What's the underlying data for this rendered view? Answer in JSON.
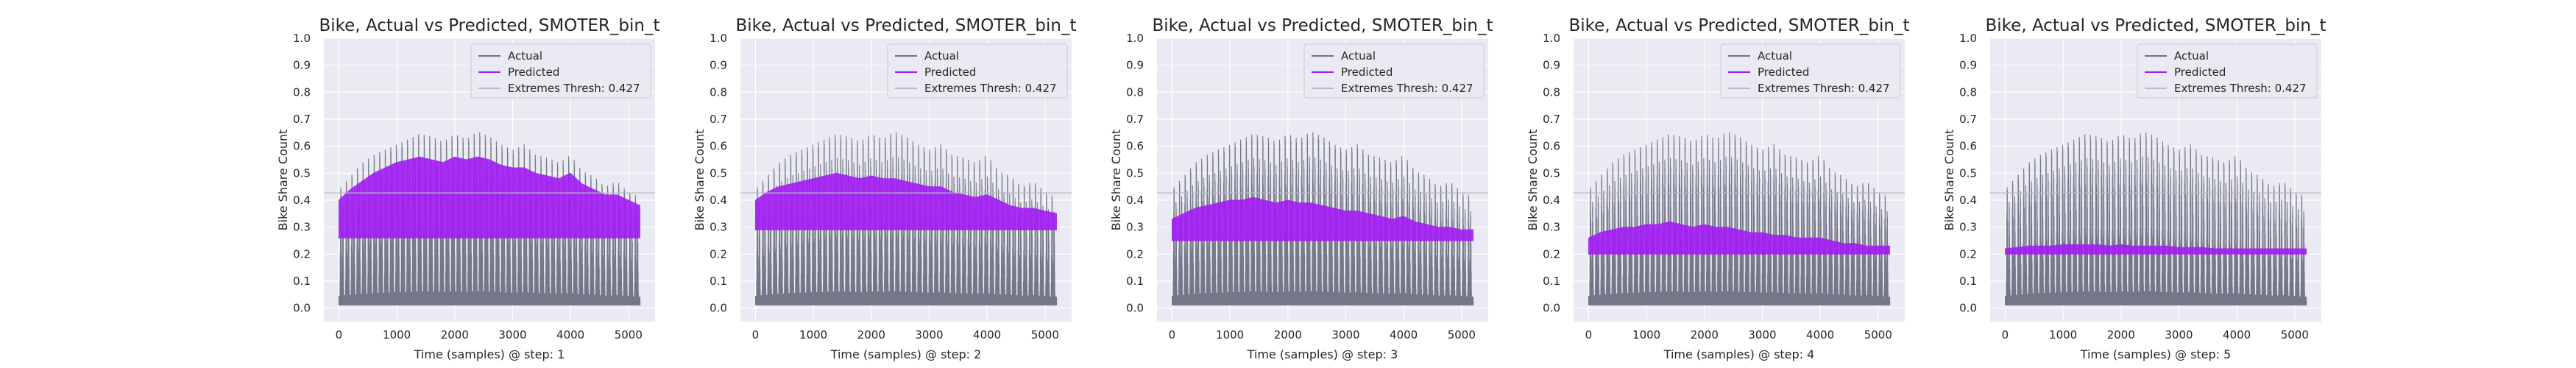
{
  "colors": {
    "actual": "#6f7183",
    "predicted": "#a31cf5",
    "threshold": "#b9b9c4",
    "background": "#eaeaf2"
  },
  "chart_data": [
    {
      "type": "line",
      "title": "Bike, Actual vs Predicted, SMOTER_bin_t",
      "xlabel": "Time (samples) @ step: 1",
      "ylabel": "Bike Share Count",
      "xlim": [
        -260,
        5460
      ],
      "ylim": [
        -0.05,
        1.0
      ],
      "xticks": [
        0,
        1000,
        2000,
        3000,
        4000,
        5000
      ],
      "yticks": [
        0.0,
        0.1,
        0.2,
        0.3,
        0.4,
        0.5,
        0.6,
        0.7,
        0.8,
        0.9,
        1.0
      ],
      "grid": true,
      "legend_position": "top-right",
      "threshold": 0.427,
      "series": [
        {
          "name": "Actual",
          "x": [
            0,
            200,
            400,
            600,
            800,
            1000,
            1200,
            1400,
            1600,
            1800,
            2000,
            2200,
            2400,
            2600,
            2800,
            3000,
            3200,
            3400,
            3600,
            3800,
            4000,
            4200,
            4400,
            4600,
            4800,
            5000,
            5200
          ],
          "low": [
            0.01,
            0.01,
            0.01,
            0.01,
            0.01,
            0.01,
            0.01,
            0.01,
            0.01,
            0.01,
            0.01,
            0.01,
            0.01,
            0.01,
            0.01,
            0.01,
            0.01,
            0.01,
            0.01,
            0.01,
            0.01,
            0.01,
            0.01,
            0.01,
            0.01,
            0.01,
            0.01
          ],
          "high": [
            0.45,
            0.5,
            0.55,
            0.58,
            0.6,
            0.62,
            0.64,
            0.66,
            0.65,
            0.63,
            0.66,
            0.64,
            0.67,
            0.65,
            0.62,
            0.6,
            0.62,
            0.58,
            0.57,
            0.55,
            0.58,
            0.52,
            0.5,
            0.46,
            0.48,
            0.44,
            0.42
          ]
        },
        {
          "name": "Predicted",
          "x": [
            0,
            200,
            400,
            600,
            800,
            1000,
            1200,
            1400,
            1600,
            1800,
            2000,
            2200,
            2400,
            2600,
            2800,
            3000,
            3200,
            3400,
            3600,
            3800,
            4000,
            4200,
            4400,
            4600,
            4800,
            5000,
            5200
          ],
          "low": [
            0.26,
            0.26,
            0.26,
            0.26,
            0.26,
            0.26,
            0.26,
            0.26,
            0.26,
            0.26,
            0.26,
            0.26,
            0.26,
            0.26,
            0.26,
            0.26,
            0.26,
            0.26,
            0.26,
            0.26,
            0.26,
            0.26,
            0.26,
            0.26,
            0.26,
            0.26,
            0.26
          ],
          "high": [
            0.4,
            0.44,
            0.47,
            0.5,
            0.52,
            0.54,
            0.55,
            0.56,
            0.55,
            0.54,
            0.56,
            0.55,
            0.56,
            0.55,
            0.53,
            0.52,
            0.52,
            0.5,
            0.49,
            0.48,
            0.5,
            0.46,
            0.44,
            0.42,
            0.42,
            0.4,
            0.38
          ]
        }
      ]
    },
    {
      "type": "line",
      "title": "Bike, Actual vs Predicted, SMOTER_bin_t",
      "xlabel": "Time (samples) @ step: 2",
      "ylabel": "Bike Share Count",
      "xlim": [
        -260,
        5460
      ],
      "ylim": [
        -0.05,
        1.0
      ],
      "xticks": [
        0,
        1000,
        2000,
        3000,
        4000,
        5000
      ],
      "yticks": [
        0.0,
        0.1,
        0.2,
        0.3,
        0.4,
        0.5,
        0.6,
        0.7,
        0.8,
        0.9,
        1.0
      ],
      "grid": true,
      "legend_position": "top-right",
      "threshold": 0.427,
      "series": [
        {
          "name": "Actual",
          "x": [
            0,
            200,
            400,
            600,
            800,
            1000,
            1200,
            1400,
            1600,
            1800,
            2000,
            2200,
            2400,
            2600,
            2800,
            3000,
            3200,
            3400,
            3600,
            3800,
            4000,
            4200,
            4400,
            4600,
            4800,
            5000,
            5200
          ],
          "low": [
            0.01,
            0.01,
            0.01,
            0.01,
            0.01,
            0.01,
            0.01,
            0.01,
            0.01,
            0.01,
            0.01,
            0.01,
            0.01,
            0.01,
            0.01,
            0.01,
            0.01,
            0.01,
            0.01,
            0.01,
            0.01,
            0.01,
            0.01,
            0.01,
            0.01,
            0.01,
            0.01
          ],
          "high": [
            0.45,
            0.5,
            0.55,
            0.58,
            0.6,
            0.62,
            0.64,
            0.66,
            0.65,
            0.63,
            0.66,
            0.64,
            0.67,
            0.65,
            0.62,
            0.6,
            0.62,
            0.58,
            0.57,
            0.55,
            0.58,
            0.52,
            0.5,
            0.46,
            0.48,
            0.44,
            0.42
          ]
        },
        {
          "name": "Predicted",
          "x": [
            0,
            200,
            400,
            600,
            800,
            1000,
            1200,
            1400,
            1600,
            1800,
            2000,
            2200,
            2400,
            2600,
            2800,
            3000,
            3200,
            3400,
            3600,
            3800,
            4000,
            4200,
            4400,
            4600,
            4800,
            5000,
            5200
          ],
          "low": [
            0.29,
            0.29,
            0.29,
            0.29,
            0.29,
            0.29,
            0.29,
            0.29,
            0.29,
            0.29,
            0.29,
            0.29,
            0.29,
            0.29,
            0.29,
            0.29,
            0.29,
            0.29,
            0.29,
            0.29,
            0.29,
            0.29,
            0.29,
            0.29,
            0.29,
            0.29,
            0.29
          ],
          "high": [
            0.4,
            0.43,
            0.45,
            0.46,
            0.47,
            0.48,
            0.49,
            0.5,
            0.49,
            0.48,
            0.49,
            0.48,
            0.48,
            0.47,
            0.46,
            0.45,
            0.45,
            0.43,
            0.42,
            0.41,
            0.42,
            0.4,
            0.38,
            0.37,
            0.37,
            0.36,
            0.35
          ]
        }
      ]
    },
    {
      "type": "line",
      "title": "Bike, Actual vs Predicted, SMOTER_bin_t",
      "xlabel": "Time (samples) @ step: 3",
      "ylabel": "Bike Share Count",
      "xlim": [
        -260,
        5460
      ],
      "ylim": [
        -0.05,
        1.0
      ],
      "xticks": [
        0,
        1000,
        2000,
        3000,
        4000,
        5000
      ],
      "yticks": [
        0.0,
        0.1,
        0.2,
        0.3,
        0.4,
        0.5,
        0.6,
        0.7,
        0.8,
        0.9,
        1.0
      ],
      "grid": true,
      "legend_position": "top-right",
      "threshold": 0.427,
      "series": [
        {
          "name": "Actual",
          "x": [
            0,
            200,
            400,
            600,
            800,
            1000,
            1200,
            1400,
            1600,
            1800,
            2000,
            2200,
            2400,
            2600,
            2800,
            3000,
            3200,
            3400,
            3600,
            3800,
            4000,
            4200,
            4400,
            4600,
            4800,
            5000,
            5200
          ],
          "low": [
            0.01,
            0.01,
            0.01,
            0.01,
            0.01,
            0.01,
            0.01,
            0.01,
            0.01,
            0.01,
            0.01,
            0.01,
            0.01,
            0.01,
            0.01,
            0.01,
            0.01,
            0.01,
            0.01,
            0.01,
            0.01,
            0.01,
            0.01,
            0.01,
            0.01,
            0.01,
            0.01
          ],
          "high": [
            0.45,
            0.5,
            0.55,
            0.58,
            0.6,
            0.62,
            0.64,
            0.66,
            0.65,
            0.63,
            0.66,
            0.64,
            0.67,
            0.65,
            0.62,
            0.6,
            0.62,
            0.58,
            0.57,
            0.55,
            0.58,
            0.52,
            0.5,
            0.46,
            0.48,
            0.44,
            0.42
          ]
        },
        {
          "name": "Predicted",
          "x": [
            0,
            200,
            400,
            600,
            800,
            1000,
            1200,
            1400,
            1600,
            1800,
            2000,
            2200,
            2400,
            2600,
            2800,
            3000,
            3200,
            3400,
            3600,
            3800,
            4000,
            4200,
            4400,
            4600,
            4800,
            5000,
            5200
          ],
          "low": [
            0.25,
            0.25,
            0.25,
            0.25,
            0.25,
            0.25,
            0.25,
            0.25,
            0.25,
            0.25,
            0.25,
            0.25,
            0.25,
            0.25,
            0.25,
            0.25,
            0.25,
            0.25,
            0.25,
            0.25,
            0.25,
            0.25,
            0.25,
            0.25,
            0.25,
            0.25,
            0.25
          ],
          "high": [
            0.33,
            0.35,
            0.37,
            0.38,
            0.39,
            0.4,
            0.4,
            0.41,
            0.4,
            0.39,
            0.4,
            0.39,
            0.39,
            0.38,
            0.37,
            0.36,
            0.36,
            0.35,
            0.34,
            0.33,
            0.34,
            0.32,
            0.31,
            0.3,
            0.3,
            0.29,
            0.29
          ]
        }
      ]
    },
    {
      "type": "line",
      "title": "Bike, Actual vs Predicted, SMOTER_bin_t",
      "xlabel": "Time (samples) @ step: 4",
      "ylabel": "Bike Share Count",
      "xlim": [
        -260,
        5460
      ],
      "ylim": [
        -0.05,
        1.0
      ],
      "xticks": [
        0,
        1000,
        2000,
        3000,
        4000,
        5000
      ],
      "yticks": [
        0.0,
        0.1,
        0.2,
        0.3,
        0.4,
        0.5,
        0.6,
        0.7,
        0.8,
        0.9,
        1.0
      ],
      "grid": true,
      "legend_position": "top-right",
      "threshold": 0.427,
      "series": [
        {
          "name": "Actual",
          "x": [
            0,
            200,
            400,
            600,
            800,
            1000,
            1200,
            1400,
            1600,
            1800,
            2000,
            2200,
            2400,
            2600,
            2800,
            3000,
            3200,
            3400,
            3600,
            3800,
            4000,
            4200,
            4400,
            4600,
            4800,
            5000,
            5200
          ],
          "low": [
            0.01,
            0.01,
            0.01,
            0.01,
            0.01,
            0.01,
            0.01,
            0.01,
            0.01,
            0.01,
            0.01,
            0.01,
            0.01,
            0.01,
            0.01,
            0.01,
            0.01,
            0.01,
            0.01,
            0.01,
            0.01,
            0.01,
            0.01,
            0.01,
            0.01,
            0.01,
            0.01
          ],
          "high": [
            0.45,
            0.5,
            0.55,
            0.58,
            0.6,
            0.62,
            0.64,
            0.66,
            0.65,
            0.63,
            0.66,
            0.64,
            0.67,
            0.65,
            0.62,
            0.6,
            0.62,
            0.58,
            0.57,
            0.55,
            0.58,
            0.52,
            0.5,
            0.46,
            0.48,
            0.44,
            0.42
          ]
        },
        {
          "name": "Predicted",
          "x": [
            0,
            200,
            400,
            600,
            800,
            1000,
            1200,
            1400,
            1600,
            1800,
            2000,
            2200,
            2400,
            2600,
            2800,
            3000,
            3200,
            3400,
            3600,
            3800,
            4000,
            4200,
            4400,
            4600,
            4800,
            5000,
            5200
          ],
          "low": [
            0.2,
            0.2,
            0.2,
            0.2,
            0.2,
            0.2,
            0.2,
            0.2,
            0.2,
            0.2,
            0.2,
            0.2,
            0.2,
            0.2,
            0.2,
            0.2,
            0.2,
            0.2,
            0.2,
            0.2,
            0.2,
            0.2,
            0.2,
            0.2,
            0.2,
            0.2,
            0.2
          ],
          "high": [
            0.26,
            0.28,
            0.29,
            0.3,
            0.3,
            0.31,
            0.31,
            0.32,
            0.31,
            0.3,
            0.31,
            0.3,
            0.3,
            0.29,
            0.28,
            0.28,
            0.27,
            0.27,
            0.26,
            0.26,
            0.26,
            0.25,
            0.24,
            0.24,
            0.23,
            0.23,
            0.23
          ]
        }
      ]
    },
    {
      "type": "line",
      "title": "Bike, Actual vs Predicted, SMOTER_bin_t",
      "xlabel": "Time (samples) @ step: 5",
      "ylabel": "Bike Share Count",
      "xlim": [
        -260,
        5460
      ],
      "ylim": [
        -0.05,
        1.0
      ],
      "xticks": [
        0,
        1000,
        2000,
        3000,
        4000,
        5000
      ],
      "yticks": [
        0.0,
        0.1,
        0.2,
        0.3,
        0.4,
        0.5,
        0.6,
        0.7,
        0.8,
        0.9,
        1.0
      ],
      "grid": true,
      "legend_position": "top-right",
      "threshold": 0.427,
      "series": [
        {
          "name": "Actual",
          "x": [
            0,
            200,
            400,
            600,
            800,
            1000,
            1200,
            1400,
            1600,
            1800,
            2000,
            2200,
            2400,
            2600,
            2800,
            3000,
            3200,
            3400,
            3600,
            3800,
            4000,
            4200,
            4400,
            4600,
            4800,
            5000,
            5200
          ],
          "low": [
            0.01,
            0.01,
            0.01,
            0.01,
            0.01,
            0.01,
            0.01,
            0.01,
            0.01,
            0.01,
            0.01,
            0.01,
            0.01,
            0.01,
            0.01,
            0.01,
            0.01,
            0.01,
            0.01,
            0.01,
            0.01,
            0.01,
            0.01,
            0.01,
            0.01,
            0.01,
            0.01
          ],
          "high": [
            0.45,
            0.5,
            0.55,
            0.58,
            0.6,
            0.62,
            0.64,
            0.66,
            0.65,
            0.63,
            0.66,
            0.64,
            0.67,
            0.65,
            0.62,
            0.6,
            0.62,
            0.58,
            0.57,
            0.55,
            0.58,
            0.52,
            0.5,
            0.46,
            0.48,
            0.44,
            0.42
          ]
        },
        {
          "name": "Predicted",
          "x": [
            0,
            200,
            400,
            600,
            800,
            1000,
            1200,
            1400,
            1600,
            1800,
            2000,
            2200,
            2400,
            2600,
            2800,
            3000,
            3200,
            3400,
            3600,
            3800,
            4000,
            4200,
            4400,
            4600,
            4800,
            5000,
            5200
          ],
          "low": [
            0.2,
            0.2,
            0.2,
            0.2,
            0.2,
            0.2,
            0.2,
            0.2,
            0.2,
            0.2,
            0.2,
            0.2,
            0.2,
            0.2,
            0.2,
            0.2,
            0.2,
            0.2,
            0.2,
            0.2,
            0.2,
            0.2,
            0.2,
            0.2,
            0.2,
            0.2,
            0.2
          ],
          "high": [
            0.22,
            0.225,
            0.23,
            0.23,
            0.23,
            0.235,
            0.235,
            0.235,
            0.235,
            0.23,
            0.235,
            0.23,
            0.23,
            0.23,
            0.23,
            0.225,
            0.225,
            0.225,
            0.22,
            0.22,
            0.22,
            0.22,
            0.22,
            0.22,
            0.22,
            0.22,
            0.22
          ]
        }
      ]
    }
  ],
  "legend": {
    "actual_label": "Actual",
    "predicted_label": "Predicted",
    "threshold_label": "Extremes Thresh: 0.427"
  }
}
